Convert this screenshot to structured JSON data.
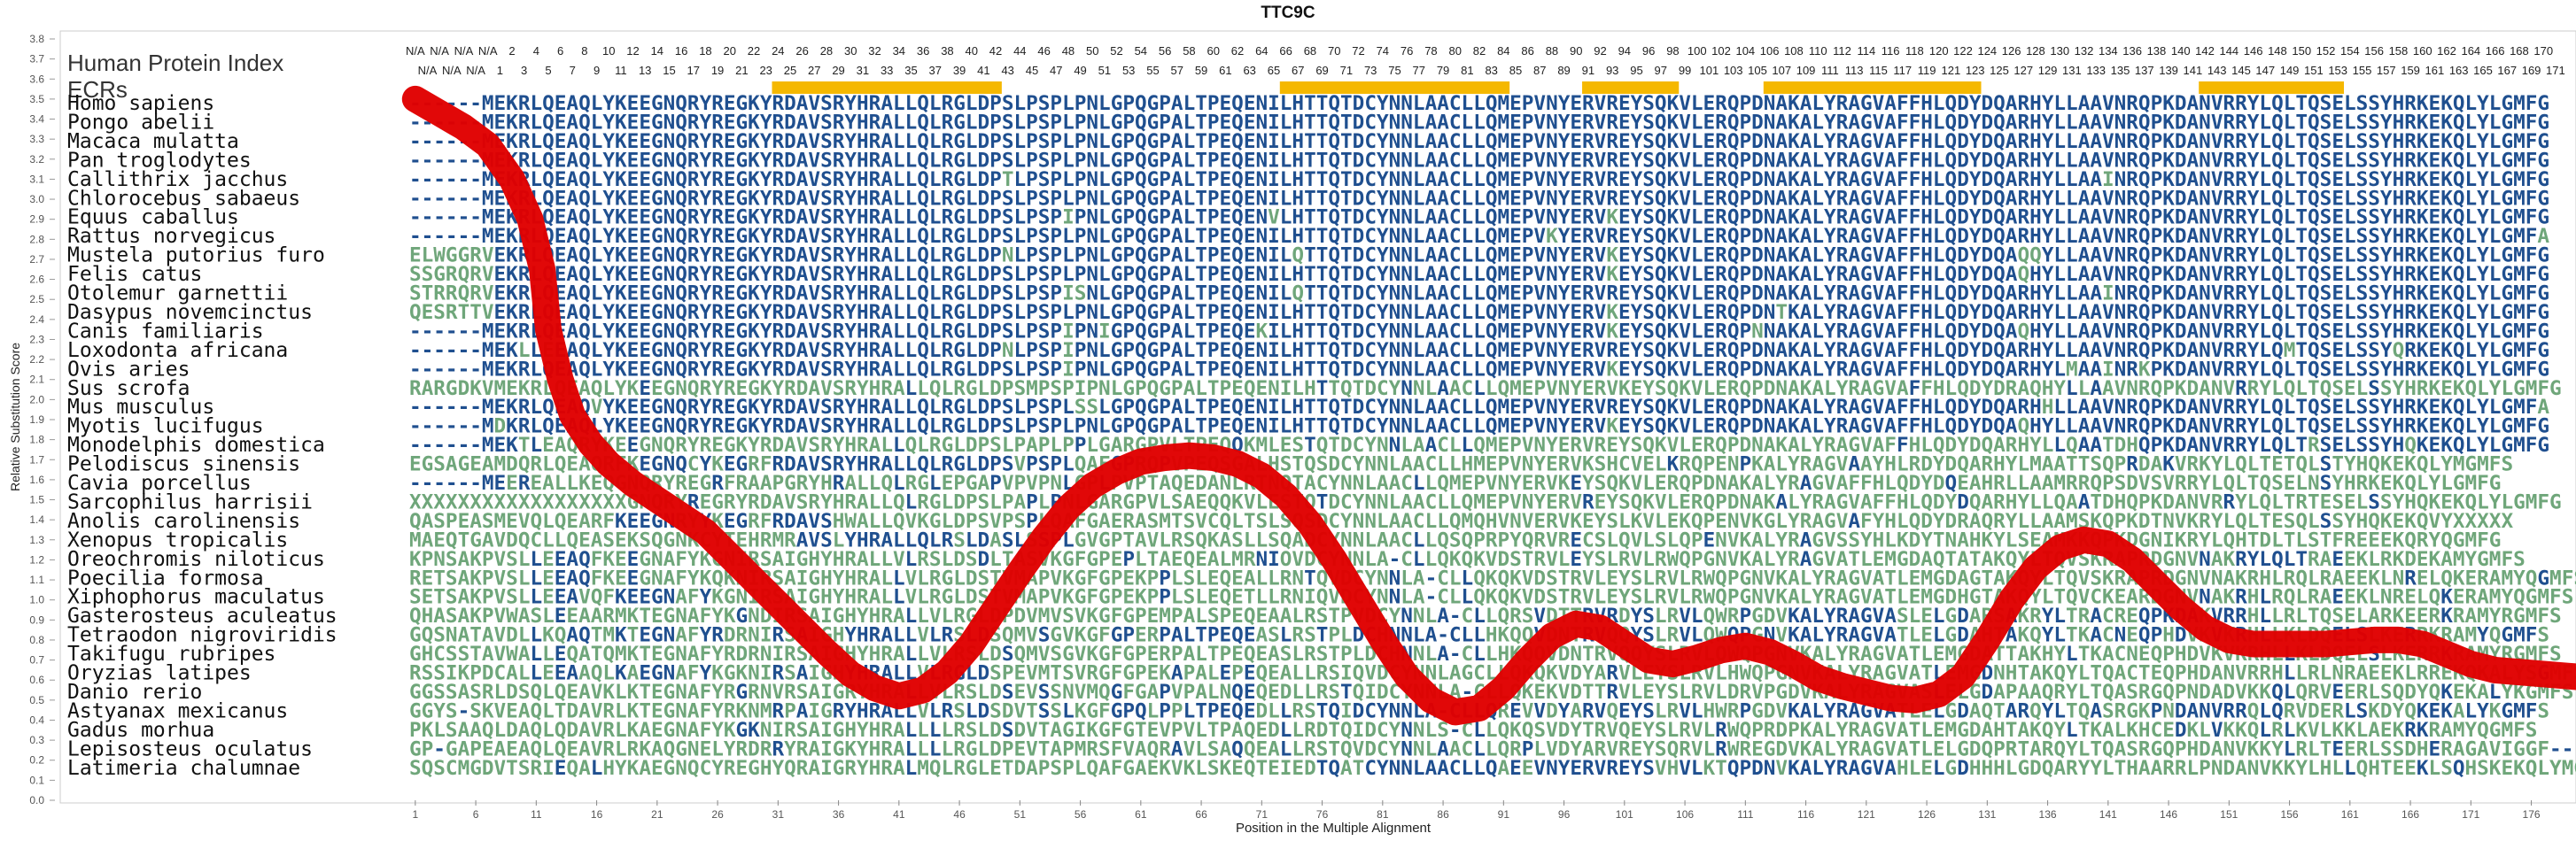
{
  "chart_data": {
    "type": "line",
    "title": "TTC9C",
    "xlabel": "Position in the Multiple Alignment",
    "ylabel": "Relative Substitution Score",
    "header_label": "Human Protein Index",
    "ecr_label": "ECRs",
    "xlim": [
      0,
      180
    ],
    "ylim": [
      0,
      3.8
    ],
    "yticks": [
      "0.0",
      "0.1",
      "0.2",
      "0.3",
      "0.4",
      "0.5",
      "0.6",
      "0.7",
      "0.8",
      "0.9",
      "1.0",
      "1.1",
      "1.2",
      "1.3",
      "1.4",
      "1.5",
      "1.6",
      "1.7",
      "1.8",
      "1.9",
      "2.0",
      "2.1",
      "2.2",
      "2.3",
      "2.4",
      "2.5",
      "2.6",
      "2.7",
      "2.8",
      "2.9",
      "3.0",
      "3.1",
      "3.2",
      "3.3",
      "3.4",
      "3.5",
      "3.6",
      "3.7",
      "3.8"
    ],
    "xticks": [
      "1",
      "6",
      "11",
      "16",
      "21",
      "26",
      "31",
      "36",
      "41",
      "46",
      "51",
      "56",
      "61",
      "66",
      "71",
      "76",
      "81",
      "86",
      "91",
      "96",
      "101",
      "106",
      "111",
      "116",
      "121",
      "126",
      "131",
      "136",
      "141",
      "146",
      "151",
      "156",
      "161",
      "166",
      "171",
      "176"
    ],
    "human_index_row1": [
      "N/A",
      "N/A",
      "N/A",
      "N/A",
      "2",
      "4",
      "6",
      "8",
      "10",
      "12",
      "14",
      "16",
      "18",
      "20",
      "22",
      "24",
      "26",
      "28",
      "30",
      "32",
      "34",
      "36",
      "38",
      "40",
      "42",
      "44",
      "46",
      "48",
      "50",
      "52",
      "54",
      "56",
      "58",
      "60",
      "62",
      "64",
      "66",
      "68",
      "70",
      "72",
      "74",
      "76",
      "78",
      "80",
      "82",
      "84",
      "86",
      "88",
      "90",
      "92",
      "94",
      "96",
      "98",
      "100",
      "102",
      "104",
      "106",
      "108",
      "110",
      "112",
      "114",
      "116",
      "118",
      "120",
      "122",
      "124",
      "126",
      "128",
      "130",
      "132",
      "134",
      "136",
      "138",
      "140",
      "142",
      "144",
      "146",
      "148",
      "150",
      "152",
      "154",
      "156",
      "158",
      "160",
      "162",
      "164",
      "166",
      "168",
      "170"
    ],
    "human_index_row2": [
      "N/A",
      "N/A",
      "N/A",
      "1",
      "3",
      "5",
      "7",
      "9",
      "11",
      "13",
      "15",
      "17",
      "19",
      "21",
      "23",
      "25",
      "27",
      "29",
      "31",
      "33",
      "35",
      "37",
      "39",
      "41",
      "43",
      "45",
      "47",
      "49",
      "51",
      "53",
      "55",
      "57",
      "59",
      "61",
      "63",
      "65",
      "67",
      "69",
      "71",
      "73",
      "75",
      "77",
      "79",
      "81",
      "83",
      "85",
      "87",
      "89",
      "91",
      "93",
      "95",
      "97",
      "99",
      "101",
      "103",
      "105",
      "107",
      "109",
      "111",
      "113",
      "115",
      "117",
      "119",
      "121",
      "123",
      "125",
      "127",
      "129",
      "131",
      "133",
      "135",
      "137",
      "139",
      "141",
      "143",
      "145",
      "147",
      "149",
      "151",
      "153",
      "155",
      "157",
      "159",
      "161",
      "163",
      "165",
      "167",
      "169",
      "171"
    ],
    "ecr_regions": [
      [
        30,
        48
      ],
      [
        72,
        90
      ],
      [
        97,
        104
      ],
      [
        112,
        129
      ],
      [
        148,
        159
      ]
    ],
    "ecr_color": "#f5b800",
    "line_color": "#e00000",
    "conserved_color": "#1f4f8f",
    "variable_color": "#6fa67a",
    "species": [
      {
        "name": "Homo sapiens",
        "seq": "------MEKRLQEAQLYKEEGNQRYREGKYRDAVSRYHRALLQLRGLDPSLPSPLPNLGPQGPALTPEQENILHTTQTDCYNNLAACLLQMEPVNYERVREYSQKVLERQPDNAKALYRAGVAFFHLQDYDQARHYLLAAVNRQPKDANVRRYLQLTQSELSSYHRKEKQLYLGMFG"
      },
      {
        "name": "Pongo abelii",
        "seq": "------MEKRLQEAQLYKEEGNQRYREGKYRDAVSRYHRALLQLRGLDPSLPSPLPNLGPQGPALTPEQENILHTTQTDCYNNLAACLLQMEPVNYERVREYSQKVLERQPDNAKALYRAGVAFFHLQDYDQARHYLLAAVNRQPKDANVRRYLQLTQSELSSYHRKEKQLYLGMFG"
      },
      {
        "name": "Macaca mulatta",
        "seq": "------MEKRLQEAQLYKEEGNQRYREGKYRDAVSRYHRALLQLRGLDPSLPSPLPNLGPQGPALTPEQENILHTTQTDCYNNLAACLLQMEPVNYERVREYSQKVLERQPDNAKALYRAGVAFFHLQDYDQARHYLLAAVNRQPKDANVRRYLQLTQSELSSYHRKEKQLYLGMFG"
      },
      {
        "name": "Pan troglodytes",
        "seq": "------MEKRLQEAQLYKEEGNQRYREGKYRDAVSRYHRALLQLRGLDPSLPSPLPNLGPQGPALTPEQENILHTTQTDCYNNLAACLLQMEPVNYERVREYSQKVLERQPDNAKALYRAGVAFFHLQDYDQARHYLLAAVNRQPKDANVRRYLQLTQSELSSYHRKEKQLYLGMFG"
      },
      {
        "name": "Callithrix jacchus",
        "seq": "------MEKRLQEAQLYKEEGNQRYREGKYRDAVSRYHRALLQLRGLDPTLPSPLPNLGPQGPALTPEQENILHTTQTDCYNNLAACLLQMEPVNYERVREYSQKVLERQPDNAKALYRAGVAFFHLQDYDQARHYLLAAINRQPKDANVRRYLQLTQSELSSYHRKEKQLYLGMFG"
      },
      {
        "name": "Chlorocebus sabaeus",
        "seq": "------MEKRLQEAQLYKEEGNQRYREGKYRDAVSRYHRALLQLRGLDPSLPSPLPNLGPQGPALTPEQENILHTTQTDCYNNLAACLLQMEPVNYERVREYSQKVLERQPDNAKALYRAGVAFFHLQDYDQARHYLLAAVNRQPKDANVRRYLQLTQSELSSYHRKEKQLYLGMFG"
      },
      {
        "name": "Equus caballus",
        "seq": "------MEKRLQEAQLYKEEGNQRYREGKYRDAVSRYHRALLQLRGLDPSLPSPIPNLGPQGPALTPEQENVLHTTQTDCYNNLAACLLQMEPVNYERVKEYSQKVLERQPDNAKALYRAGVAFFHLQDYDQARHYLLAAVNRQPKDANVRRYLQLTQSELSSYHRKEKQLYLGMFG"
      },
      {
        "name": "Rattus norvegicus",
        "seq": "------MEKRLQEAQLYKEEGNQRYREGKYRDAVSRYHRALLQLRGLDPSLPSPLPNLGPQGPALTPEQENILHTTQTDCYNNLAACLLQMEPVKYERVREYSQKVLERQPDNAKALYRAGVAFFHLQDYDQARHYLLAAVNRQPKDANVRRYLQLTQSELSSYHRKEKQLYLGMFA"
      },
      {
        "name": "Mustela putorius furo",
        "seq": "ELWGGRVEKRLQEAQLYKEEGNQRYREGKYRDAVSRYHRALLQLRGLDPNLPSPLPNLGPQGPALTPEQENILQTTQTDCYNNLAACLLQMEPVNYERVKEYSQKVLERQPDNAKALYRAGVAFFHLQDYDQAQQYLLAAVNRQPKDANVRRYLQLTQSELSSYHRKEKQLYLGMFG"
      },
      {
        "name": "Felis catus",
        "seq": "SSGRQRVEKRLQEAQLYKEEGNQRYREGKYRDAVSRYHRALLQLRGLDPSLPSPLPNLGPQGPALTPEQENILHTTQTDCYNNLAACLLQMEPVNYERVKEYSQKVLERQPDNAKALYRAGVAFFHLQDYDQAQHYLLAAVNRQPKDANVRRYLQLTQSELSSYHRKEKQLYLGMFG"
      },
      {
        "name": "Otolemur garnettii",
        "seq": "STRRQRVEKRLQEAQLYKEEGNQRYREGKYRDAVSRYHRALLQLRGLDPSLPSPISNLGPQGPALTPEQENILQTTQTDCYNNLAACLLQMEPVNYERVREYSQKVLERQPDNAKALYRAGVAFFHLQDYDQARHYLLAAINRQPKDANVRRYLQLTQSELSSYHRKEKQLYLGMFG"
      },
      {
        "name": "Dasypus novemcinctus",
        "seq": "QESRTTVEKRLQEAQLYKEEGNQRYREGKYRDAVSRYHRALLQLRGLDPSLPSPLPNLGPQGPALTPEQENILHTTQTDCYNNLAACLLQMEPVNYERVKEYSQKVLERQPDNTKALYRAGVAFFHLQDYDQARHYLLAAVNRQPKDANVRRYLQLTQSELSSYHRKEKQLYLGMFG"
      },
      {
        "name": "Canis familiaris",
        "seq": "------MEKRLQEAQLYKEEGNQRYREGKYRDAVSRYHRALLQLRGLDPSLPSPIPNIGPQGPALTPEQEKILHTTQTDCYNNLAACLLQMEPVNYERVKEYSQKVLERQPNNAKALYRAGVAFFHLQDYDQAQHYLLAAVNRQPKDANVRRYLQLTQSELSSYHRKEKQLYLGMFG"
      },
      {
        "name": "Loxodonta africana",
        "seq": "------MEKLLEEAQLYKEEGNQRYREGKYRDAVSRYHRALLQLRGLDPNLPSPIPNLGPQGPALTPEQENILHTTQTDCYNNLAACLLQMEPVNYERVREYSQKVLERQPDNAKALYRAGVAFFHLQDYDQARHYLLAAVNRQPKDANVRRYLQMTQSELSSYQRKEKQLYLGMFG"
      },
      {
        "name": "Ovis aries",
        "seq": "------MEKRLQEAQLYKEEGNQRYREGKYRDAVSRYHRALLQLRGLDPSLPSPIPNLGPQGPALTPEQENILHTTQTDCYNNLAACLLQMEPVNYERVKEYSQKVLERQPDNAKALYRAGVAFFHLQDYDQARHYLMAAINRKPKDANVRRYLQLTQSELSSYHRKEKQLYLGMFG"
      },
      {
        "name": "Sus scrofa",
        "seq": "RARGDKVMEKRLQEAQLYKEEGNQRYREGKYRDAVSRYHRALLQLRGLDPSMPSPIPNLGPQGPALTPEQENILHTTQTDCYNNLAACLLQMEPVNYERVKEYSQKVLERQPDNAKALYRAGVAFFHLQDYDRAQHYLLAAVNRQPKDANVRRYLQLTQSELSSYHRKEKQLYLGMFG"
      },
      {
        "name": "Mus musculus",
        "seq": "------MEKRLQEAQVYKEEGNQRYREGKYRDAVSRYHRALLQLRGLDPSLPSPLSSLGPQGPALTPEQENILHTTQTDCYNNLAACLLQMEPVNYERVREYSQKVLERQPDNAKALYRAGVAFFHLQDYDQARHHLLAAVNRQPKDANVRRYLQLTQSELSSYHRKEKQLYLGMFA"
      },
      {
        "name": "Myotis lucifugus",
        "seq": "------MDKRLQEAQLYKEEGNQRYREGKYRDAVSRYHRALLQLRGLDPSLPSPLPNLGPQGPALTPEQENILHTTQTDCYNNLAACLLQMEPVNYERVKEYSQKVLERQPDNAKALYRAGVAFFHLQDYDQAQHYLLAAVNRQPKDANVRRYLQLTQSELSSYHRKEKQLYLGMFG"
      },
      {
        "name": "Monodelphis domestica",
        "seq": "------MEKTLEAQRYKEEGNQRYREGKYRDAVSRYHRALLQLRGLDPSLPAPLPPLGARGPVLTPEQQKMLESTQTDCYNNLAACLLQMEPVNYERVREYSQKVLERQPDNAKALYRAGVAFFHLQDYDQARHYLLQAATDHQPKDANVRRYLQLTRSELSSYHQKEKQLYLGMFG"
      },
      {
        "name": "Pelodiscus sinensis",
        "seq": "EGSAGEAMDQRLQEAQRFKEGNQCYKEGRFRDAVSRYHRALLQLRGLDPSVPSPLQAFGPRQPVPEQSGALHSTQSDCYNNLAACLLHMEPVNYERVKSHCVELKRQPENPKALYRAGVAAYHLRDYDQARHYLMAATTSQPRDAKVRKYLQLTETQLSTYHQKEKQLYMGMFS"
      },
      {
        "name": "Cavia porcellus",
        "seq": "------MEEREALLKEQGNQRYREGRFRAAPGRYHRALLQLRGLEPGAPVPVPNLGPLPVPTAQEDANLRTNQTACYNNLAACLLQMEPVNYERVKEYSQKVLERQPDNAKALYRAGVAFFHLQDYDQEAHRLLAAMRRQPSDVSVRRYLQLTQSELNSYHRKEKQLYLGMFG"
      },
      {
        "name": "Sarcophilus harrisii",
        "seq": "XXXXXXXXXXXXXXXXXXGNQRYREGRYRDAVSRYHRALLQLRGLDPSLPAPLPNLGARGPVLSAEQQKVLESTQTDCYNNLAACLLQMEPVNYERVREYSQKVLERQPDNAKALYRAGVAFFHLQDYDQARHYLLQAATDHQPKDANVRRYLQLTRTESELSSYHQKEKQLYLGMFG"
      },
      {
        "name": "Anolis carolinensis",
        "seq": "QASPEASMEVQLQEARFKEEGNRYYKEGRFRDAVSHWALLQVKGLDPSVPSPLQAFGAERASMTSVCQLTSLSQSDCYNNLAACLLQMQHVNVERVKEYSLKVLEKQPENVKGLYRAGVAFYHLQDYDRAQRYLLAAMSKQPKDTNVKRYLQLTESQLSSYHQKEKQVYXXXXX"
      },
      {
        "name": "Xenopus tropicalis",
        "seq": "MAEQTGAVDQCLLQEASEKSQGNKCYTEHRMRAVSLYHRALLQLRSLDASLSSPLGVGPTAVLRSQKASLLSQADCYNNLAACLLQSQPRPYQRVRECSLQVLSLQPENVKALYRAGVSSYHLKDYTNAHKYLSEAMKKQPKDGNIKRYLQHTDLTLSTFREEEKQRYQGMFG"
      },
      {
        "name": "Oreochromis niloticus",
        "seq": "KPNSAKPVSLLEEAQFKEEGNAFYKGNIRSAIGHYHRALLVLRSLDSDLTASVKGFGPEPLTAEQEALMRNIOVDCYNNLA-CLLQKQKVDSTRVLEYSLRVLRWQPGNVKALYRAGVATLEMGDAQTATAKQYLTQVSKRAPRDGNVNAKRYLQLTRAEEKLRKDEKAMYGMFS"
      },
      {
        "name": "Poecilia formosa",
        "seq": "RETSAKPVSLLEEAQFKEEGNAFYKQKNIRSAIGHYHRALLVLRGLDSTVMAPVKGFGPEKPPLSLEQEALLRNTQVDCYNNLA-CLLQKQKVDSTRVLEYSLRVLRWQPGNVKALYRAGVATLEMGDAGTAKQYLTQVSKRAPRDGNVNAKRHLRQLRAEEKLNRELQKERAMYQGMFS"
      },
      {
        "name": "Xiphophorus maculatus",
        "seq": "SETSAKPVSLLEEAVQFKEEGNAFYKGNIRSAIGHYHRALLVLRGLDSTVMAPVKGFGPEKPPLSLEQETLLRNIQVDCYNNLA-CLLQKQKVDSTRVLEYSLRVLRWQPGNVKALYRAGVATLEMGDHGTAKQYLTQVCKEARDGNVNAKRHLRQLRAEEKLNRELQKERAMYQGMFS"
      },
      {
        "name": "Gasterosteus aculeatus",
        "seq": "QHASAKPVWASLEEAARMKTEGNAFYKGNDIRSAIGHYHRALLVLRGLDPDVMVSVKGFGPEMPALSPEQEAALRSTPVDCYNNLA-CLLQRSVDTTRVRDYSLRVLQWRPGDVKALYRAGVASLELGDARSAKRYLTRACREQPKDAKVRRHLLRLTQSELARKEERKRAMYRGMFS"
      },
      {
        "name": "Tetraodon nigroviridis",
        "seq": "GQSNATAVDLLKQAQTMKTEGNAFYRDRNIRSAIGHYHRALLVLRSLDSQMVSGVKGFGPERPALTPEQEASLRSTPLDCHNNLA-CLLHKQQVDNTRVQQYSLRVLQWQPGNVKALYRAGVATLELGDAHTAKQYLTKACNEQPHDVKVKRHLLKLDQELSLKERRKRAMYQGMFS"
      },
      {
        "name": "Takifugu rubripes",
        "seq": "GHCSSTAVWALLEQATQMKTEGNAFYRDRNIRSAIGHYHRALLVLRSLDSQMVSGVKGFGPERPALTPEQEASLRSTPLDCHNNLA-CLLHKQQVDNTRVQQYSLRVLQWQPGNVKALYRAGVATLEMGDATTAKHYLTKACNEQPHDVKVKRHLLKLDQELSLKERRKRAMYRGMFS"
      },
      {
        "name": "Oryzias latipes",
        "seq": "RSSIKPDCALLEEAAQLKAEGNAFYKGKNIRSAIGHYHRALLVLRGLDSPEVMTSVRGFGPEKAPALEPEQEALLRSIQVDCYNNLAGCLLQKQKVDYARVLEYSLRVLHWQPGNVKALYRAGVATLEMGDNHTAKQYLTQACTEQPHDANVRRHLLRLNRAEEKLRREKQKALYSGMFS"
      },
      {
        "name": "Danio rerio",
        "seq": "GGSSASRLDSQLQEAVKLKTEGNAFYRGRNVRSAIGRYHRALLVLRSLDSEVSSNVMQGFGAPVPALNQEQEDLLRSTQIDCYNNLA-CLLQKEKVDTTRVLEYSLRVLDRVPGDVKALYRAGVASLELGDAPAAQRYLTQASRGQPNDADVKKQLQRVEERLSQDYQKEKALYKGMFS"
      },
      {
        "name": "Astyanax mexicanus",
        "seq": "GGYS-SKVEAQLTDAVRLKTEGNAFYRKNMRPAIGRYHRALLVLRSLDSDVTSSLKGFGPQLPPLTPEQEDLLRSTQIDCYNNLA-CLLQREVVDYARVQEYSLRVLHWRPGDVKALYRAGVATLELGDAQTARQYLTQASRGKPNDANVRRQLQRVDERLSKDYQKEKALYKGMFS"
      },
      {
        "name": "Gadus morhua",
        "seq": "PKLSAAQLDAQLQDAVRLKAEGNAFYKGKNIRSAIGHYHRALLLLRSLDSDVTAGIKGFGTEVPVLTPAQEDLLRDTQIDCYNNLS-CLLQKQSVDYTRVQEYSLRVLRWQPRDPKALYRAGVATLEMGDAHTAKQYLTKALKHCEDKLVKKQLRLKVLKKLAEKRKRAMYQGMFS"
      },
      {
        "name": "Lepisosteus oculatus",
        "seq": "GP-GAPEAEAQLQEAVRLRKAQGNELYRDRRYRAIGKYHRALLLLRGLDPEVTAPMRSFVAQRAVLSAQQEALLRSTQVDCYNNLAACLLQRPLVDYARVREYSQRVLRWREGDVKALYRAGVATLELGDQPRTARQYLTQASRGQPHDANVKKYLRLTEERLSSDHERAGAVIGGF--"
      },
      {
        "name": "Latimeria chalumnae",
        "seq": "SQSCMGDVTSRIEQALHYKAEGNQCYREGHYQRAIGRYHRALMQLRGLETDAPSPLQAFGAEKVKLSKEQTEIEDTQATCYNNLAACLLQAEEVNYERVREYSVHVLKTQPDNVKALYRAGVAHLELGDHHHLGDQARYYLTHAARRLPNDANVKKYLHLLQHTEEKLSQHSKEKQLYMGMFG"
      }
    ],
    "curve": [
      [
        0.0,
        3.5
      ],
      [
        2.0,
        3.43
      ],
      [
        4.0,
        3.36
      ],
      [
        6.0,
        3.27
      ],
      [
        8.0,
        3.1
      ],
      [
        9.5,
        2.9
      ],
      [
        10.5,
        2.65
      ],
      [
        11.0,
        2.35
      ],
      [
        12.0,
        2.1
      ],
      [
        13.0,
        1.92
      ],
      [
        14.5,
        1.78
      ],
      [
        16.0,
        1.68
      ],
      [
        18.0,
        1.58
      ],
      [
        20.0,
        1.5
      ],
      [
        22.0,
        1.42
      ],
      [
        24.0,
        1.34
      ],
      [
        26.0,
        1.22
      ],
      [
        28.0,
        1.1
      ],
      [
        30.0,
        0.98
      ],
      [
        32.0,
        0.86
      ],
      [
        34.0,
        0.74
      ],
      [
        36.0,
        0.63
      ],
      [
        38.0,
        0.56
      ],
      [
        40.0,
        0.52
      ],
      [
        42.0,
        0.55
      ],
      [
        44.0,
        0.64
      ],
      [
        46.0,
        0.78
      ],
      [
        48.0,
        0.96
      ],
      [
        50.0,
        1.14
      ],
      [
        52.0,
        1.31
      ],
      [
        54.0,
        1.46
      ],
      [
        56.0,
        1.57
      ],
      [
        58.0,
        1.64
      ],
      [
        60.0,
        1.69
      ],
      [
        62.0,
        1.71
      ],
      [
        64.0,
        1.72
      ],
      [
        66.0,
        1.71
      ],
      [
        68.0,
        1.68
      ],
      [
        70.0,
        1.62
      ],
      [
        72.0,
        1.52
      ],
      [
        74.0,
        1.38
      ],
      [
        76.0,
        1.2
      ],
      [
        78.0,
        1.0
      ],
      [
        80.0,
        0.8
      ],
      [
        82.0,
        0.62
      ],
      [
        84.0,
        0.5
      ],
      [
        86.0,
        0.44
      ],
      [
        88.0,
        0.46
      ],
      [
        90.0,
        0.56
      ],
      [
        92.0,
        0.7
      ],
      [
        94.0,
        0.82
      ],
      [
        96.0,
        0.88
      ],
      [
        98.0,
        0.86
      ],
      [
        100.0,
        0.78
      ],
      [
        102.0,
        0.7
      ],
      [
        104.0,
        0.68
      ],
      [
        106.0,
        0.71
      ],
      [
        108.0,
        0.75
      ],
      [
        110.0,
        0.77
      ],
      [
        112.0,
        0.74
      ],
      [
        114.0,
        0.68
      ],
      [
        116.0,
        0.61
      ],
      [
        118.0,
        0.57
      ],
      [
        120.0,
        0.54
      ],
      [
        122.0,
        0.51
      ],
      [
        124.0,
        0.5
      ],
      [
        126.0,
        0.53
      ],
      [
        128.0,
        0.62
      ],
      [
        130.0,
        0.8
      ],
      [
        132.0,
        1.0
      ],
      [
        134.0,
        1.16
      ],
      [
        136.0,
        1.26
      ],
      [
        138.0,
        1.3
      ],
      [
        140.0,
        1.28
      ],
      [
        142.0,
        1.2
      ],
      [
        144.0,
        1.08
      ],
      [
        146.0,
        0.96
      ],
      [
        148.0,
        0.86
      ],
      [
        150.0,
        0.8
      ],
      [
        152.0,
        0.78
      ],
      [
        154.0,
        0.78
      ],
      [
        156.0,
        0.78
      ],
      [
        158.0,
        0.78
      ],
      [
        160.0,
        0.79
      ],
      [
        162.0,
        0.8
      ],
      [
        164.0,
        0.8
      ],
      [
        166.0,
        0.78
      ],
      [
        168.0,
        0.73
      ],
      [
        170.0,
        0.68
      ],
      [
        172.0,
        0.65
      ],
      [
        174.0,
        0.64
      ],
      [
        176.0,
        0.63
      ],
      [
        178.0,
        0.62
      ],
      [
        180.0,
        0.61
      ]
    ]
  }
}
